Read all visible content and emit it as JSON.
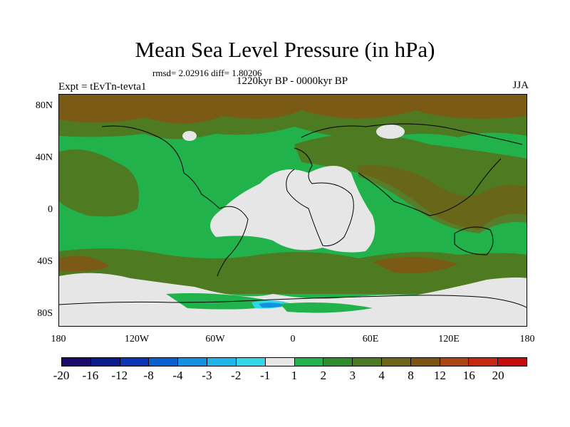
{
  "title": "Mean Sea Level Pressure (in hPa)",
  "stats": "rmsd= 2.02916 diff= 1.80206",
  "period": "1220kyr BP - 0000kyr BP",
  "experiment": "Expt = tEvTn-tevta1",
  "season": "JJA",
  "y_ticks": [
    "80N",
    "40N",
    "0",
    "40S",
    "80S"
  ],
  "x_ticks": [
    "180",
    "120W",
    "60W",
    "0",
    "60E",
    "120E",
    "180"
  ],
  "colorbar": {
    "colors": [
      "#1a0a6b",
      "#0b1a8c",
      "#0a36b4",
      "#0a5fd0",
      "#1490e0",
      "#1fb5e8",
      "#33d6e8",
      "#e6e6e6",
      "#22b24c",
      "#2e8c2a",
      "#4c7a22",
      "#6b6618",
      "#7a5410",
      "#a84512",
      "#c42810",
      "#c80a0a"
    ],
    "labels": [
      "-20",
      "-16",
      "-12",
      "-8",
      "-4",
      "-3",
      "-2",
      "-1",
      "1",
      "2",
      "3",
      "4",
      "8",
      "12",
      "16",
      "20"
    ]
  },
  "colors": {
    "high_brown": "#7a5a14",
    "mid_olive": "#4e7a22",
    "green": "#22b24c",
    "near_zero": "#e6e6e6",
    "light_blue": "#33d6e8",
    "blue": "#1490e0"
  }
}
